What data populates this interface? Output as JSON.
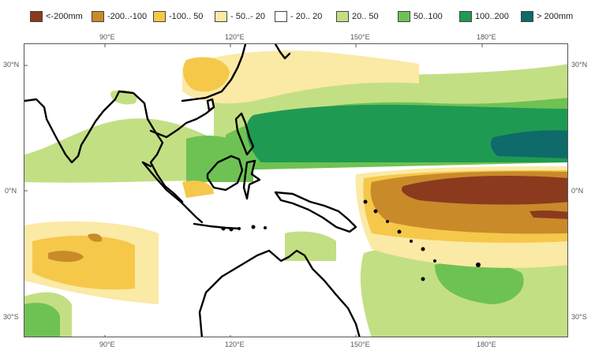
{
  "legend": [
    {
      "label": "<-200mm",
      "color": "#8b3a1e"
    },
    {
      "label": "-200..-100",
      "color": "#c98a2a"
    },
    {
      "label": "-100.. 50",
      "color": "#f5c84a"
    },
    {
      "label": "- 50..- 20",
      "color": "#fbe9a6"
    },
    {
      "label": "- 20.. 20",
      "color": "#ffffff"
    },
    {
      "label": "20.. 50",
      "color": "#c3df84"
    },
    {
      "label": "50..100",
      "color": "#6ec253"
    },
    {
      "label": "100..200",
      "color": "#1f9a52"
    },
    {
      "label": "> 200mm",
      "color": "#0f6a6a"
    }
  ],
  "axes": {
    "top_longitudes": [
      "90°E",
      "120°E",
      "150°E",
      "180°E"
    ],
    "bottom_longitudes": [
      "90°E",
      "120°E",
      "150°E",
      "180°E"
    ],
    "left_latitudes": [
      "30°N",
      "0°N",
      "30°S"
    ],
    "right_latitudes": [
      "30°N",
      "0°N",
      "30°S"
    ]
  }
}
